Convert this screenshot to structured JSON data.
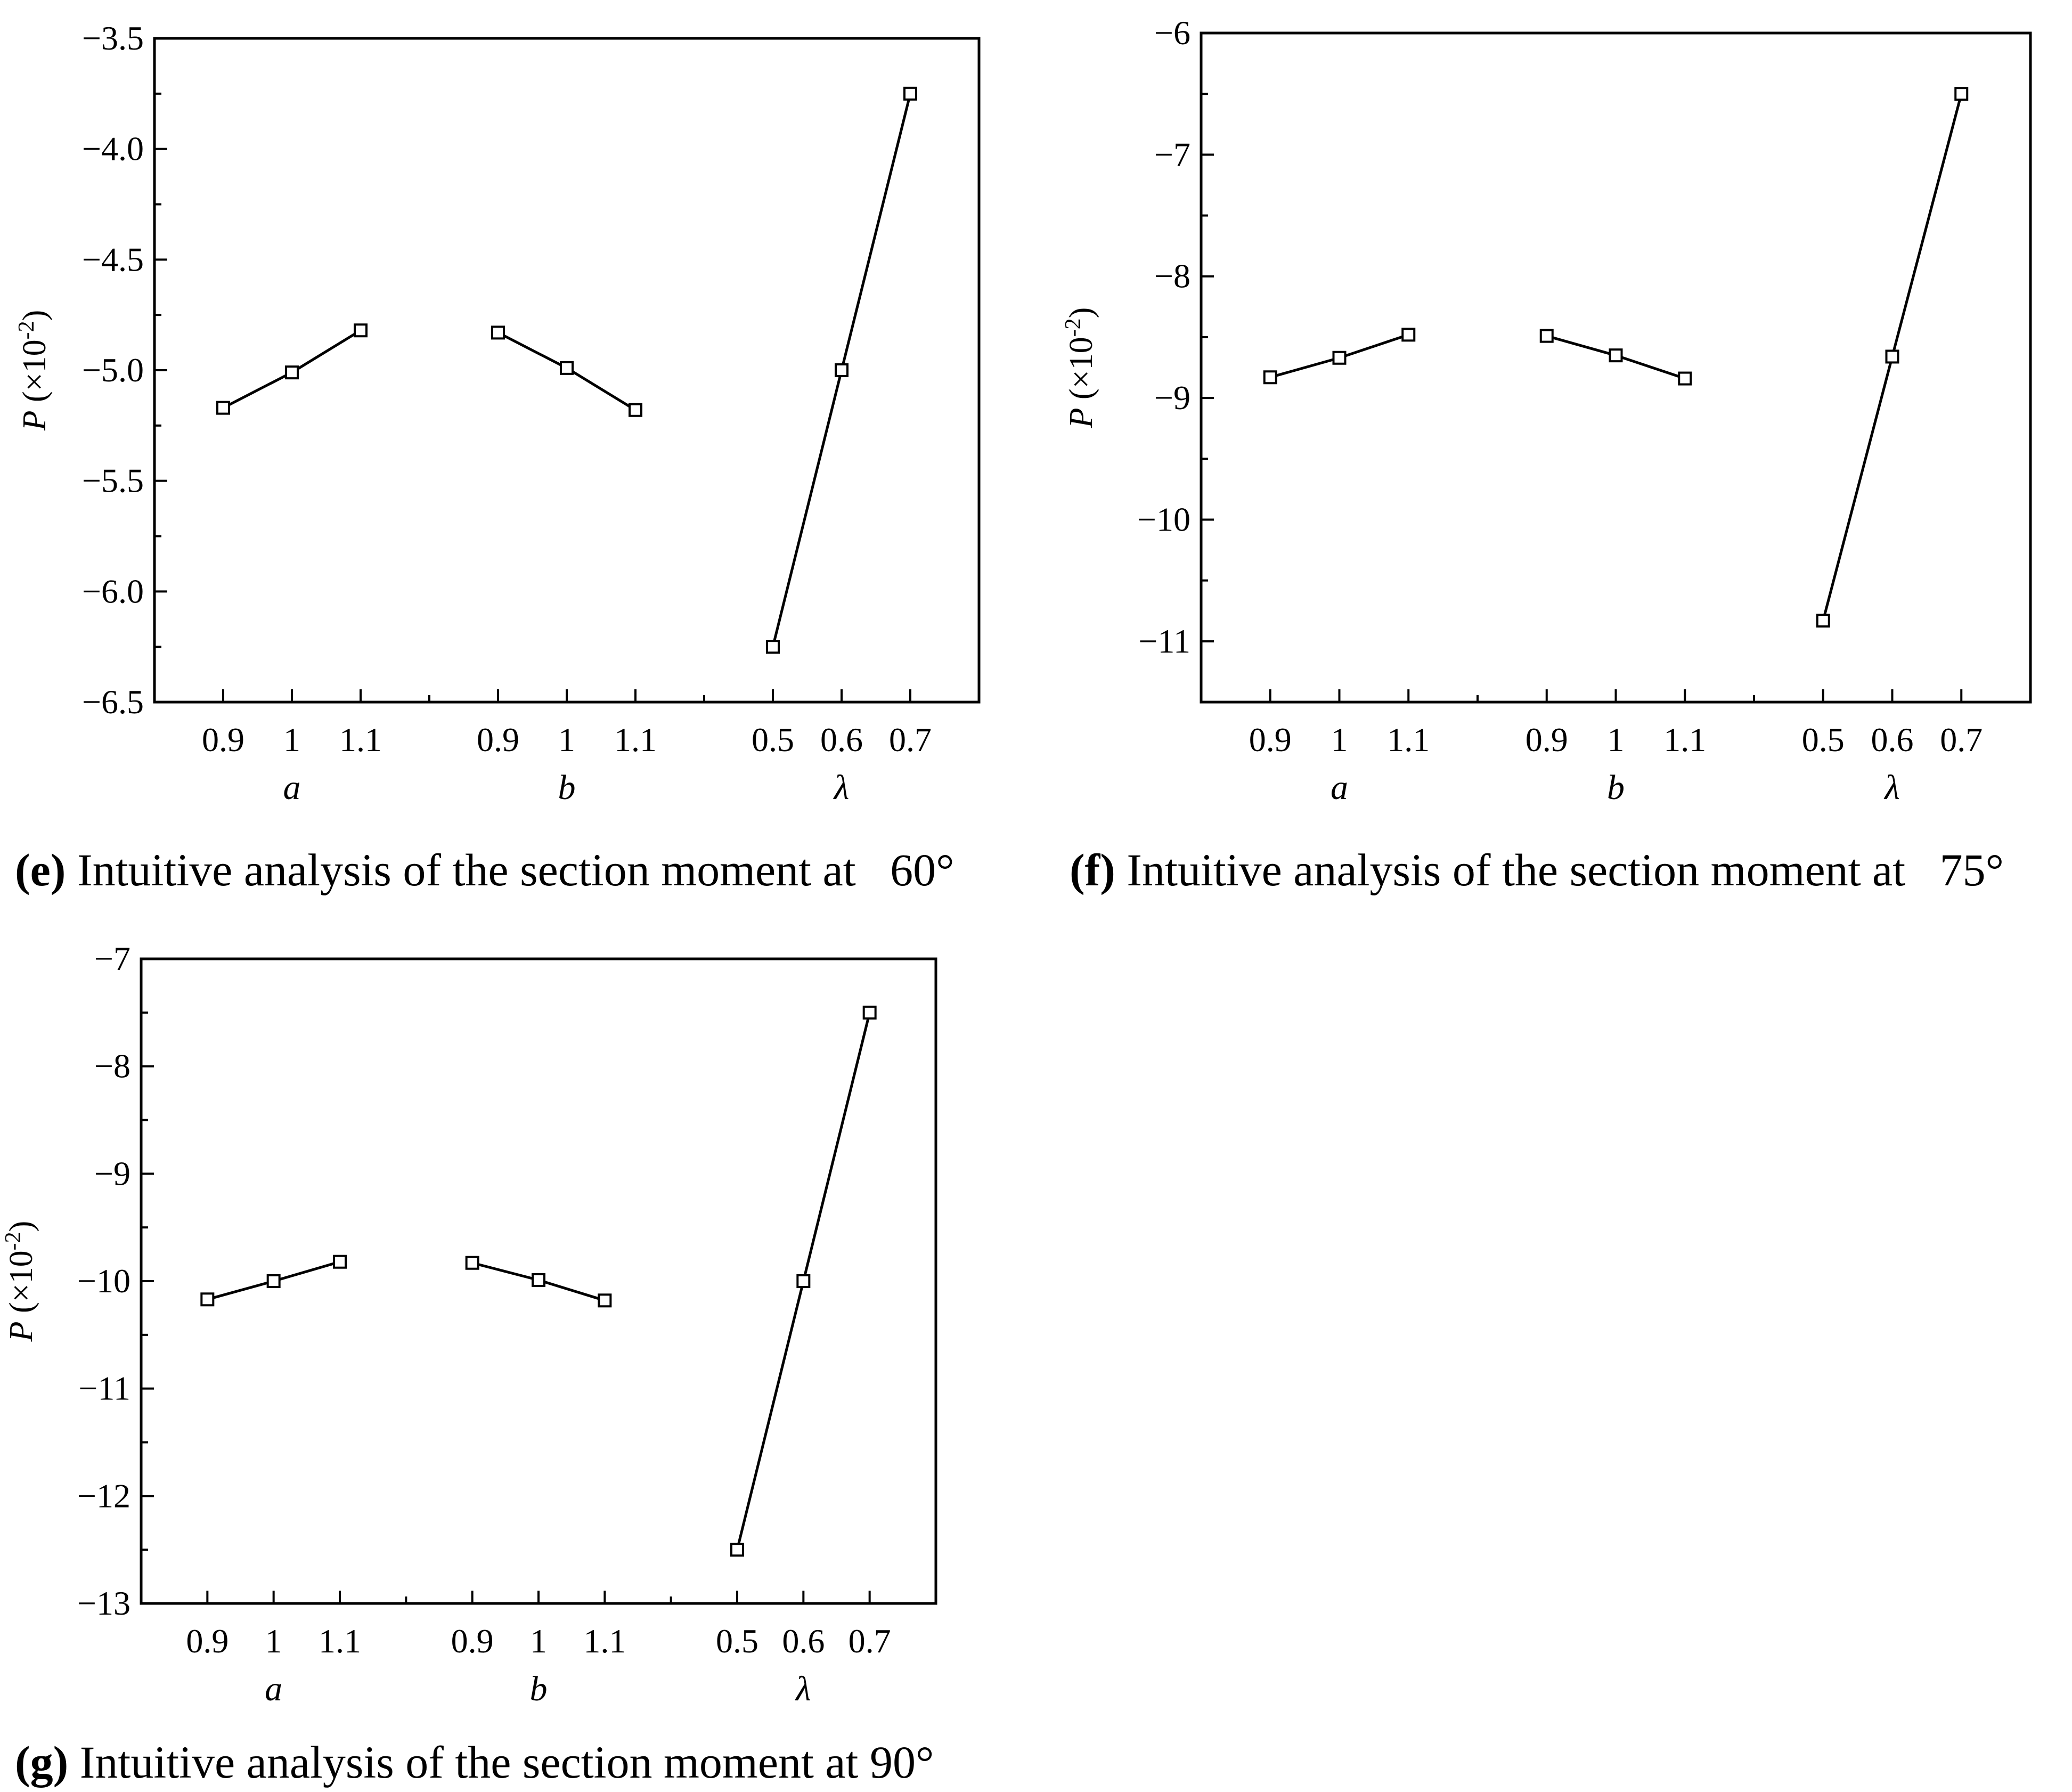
{
  "colors": {
    "line": "#000000",
    "marker_fill": "#ffffff",
    "background": "#ffffff"
  },
  "panels": [
    {
      "id": "e",
      "caption": {
        "letter": "(e)",
        "text": " Intuitive analysis of the section moment at   60°"
      },
      "ylabel": {
        "var": "P",
        "unit_open": " (×10",
        "exp": "-2",
        "unit_close": ")"
      }
    },
    {
      "id": "f",
      "caption": {
        "letter": "(f)",
        "text": " Intuitive analysis of the section moment at   75°"
      },
      "ylabel": {
        "var": "P",
        "unit_open": " (×10",
        "exp": "-2",
        "unit_close": ")"
      }
    },
    {
      "id": "g",
      "caption": {
        "letter": "(g)",
        "text": " Intuitive analysis of the section moment at 90°"
      },
      "ylabel": {
        "var": "P",
        "unit_open": " (×10",
        "exp": "-2",
        "unit_close": ")"
      }
    }
  ],
  "chart_data": [
    {
      "type": "line",
      "panel": "e",
      "ylim": [
        -6.5,
        -3.5
      ],
      "yticks": [
        -6.5,
        -6.0,
        -5.5,
        -5.0,
        -4.5,
        -4.0,
        -3.5
      ],
      "ytick_labels": [
        "−6.5",
        "−6.0",
        "−5.5",
        "−5.0",
        "−4.5",
        "−4.0",
        "−3.5"
      ],
      "yminor_step": 0.25,
      "grid": false,
      "marker": "open-square",
      "groups": [
        {
          "label": "a",
          "levels": [
            "0.9",
            "1",
            "1.1"
          ],
          "values": [
            -5.17,
            -5.01,
            -4.82
          ]
        },
        {
          "label": "b",
          "levels": [
            "0.9",
            "1",
            "1.1"
          ],
          "values": [
            -4.83,
            -4.99,
            -5.18
          ]
        },
        {
          "label": "λ",
          "levels": [
            "0.5",
            "0.6",
            "0.7"
          ],
          "values": [
            -6.25,
            -5.0,
            -3.75
          ]
        }
      ]
    },
    {
      "type": "line",
      "panel": "f",
      "ylim": [
        -11.5,
        -6
      ],
      "yticks": [
        -11,
        -10,
        -9,
        -8,
        -7,
        -6
      ],
      "ytick_labels": [
        "−11",
        "−10",
        "−9",
        "−8",
        "−7",
        "−6"
      ],
      "yminor_step": 0.5,
      "grid": false,
      "marker": "open-square",
      "groups": [
        {
          "label": "a",
          "levels": [
            "0.9",
            "1",
            "1.1"
          ],
          "values": [
            -8.83,
            -8.67,
            -8.48
          ]
        },
        {
          "label": "b",
          "levels": [
            "0.9",
            "1",
            "1.1"
          ],
          "values": [
            -8.49,
            -8.65,
            -8.84
          ]
        },
        {
          "label": "λ",
          "levels": [
            "0.5",
            "0.6",
            "0.7"
          ],
          "values": [
            -10.83,
            -8.66,
            -6.5
          ]
        }
      ]
    },
    {
      "type": "line",
      "panel": "g",
      "ylim": [
        -13,
        -7
      ],
      "yticks": [
        -13,
        -12,
        -11,
        -10,
        -9,
        -8,
        -7
      ],
      "ytick_labels": [
        "−13",
        "−12",
        "−11",
        "−10",
        "−9",
        "−8",
        "−7"
      ],
      "yminor_step": 0.5,
      "grid": false,
      "marker": "open-square",
      "groups": [
        {
          "label": "a",
          "levels": [
            "0.9",
            "1",
            "1.1"
          ],
          "values": [
            -10.17,
            -10.0,
            -9.82
          ]
        },
        {
          "label": "b",
          "levels": [
            "0.9",
            "1",
            "1.1"
          ],
          "values": [
            -9.83,
            -9.99,
            -10.18
          ]
        },
        {
          "label": "λ",
          "levels": [
            "0.5",
            "0.6",
            "0.7"
          ],
          "values": [
            -12.5,
            -10.0,
            -7.5
          ]
        }
      ]
    }
  ]
}
